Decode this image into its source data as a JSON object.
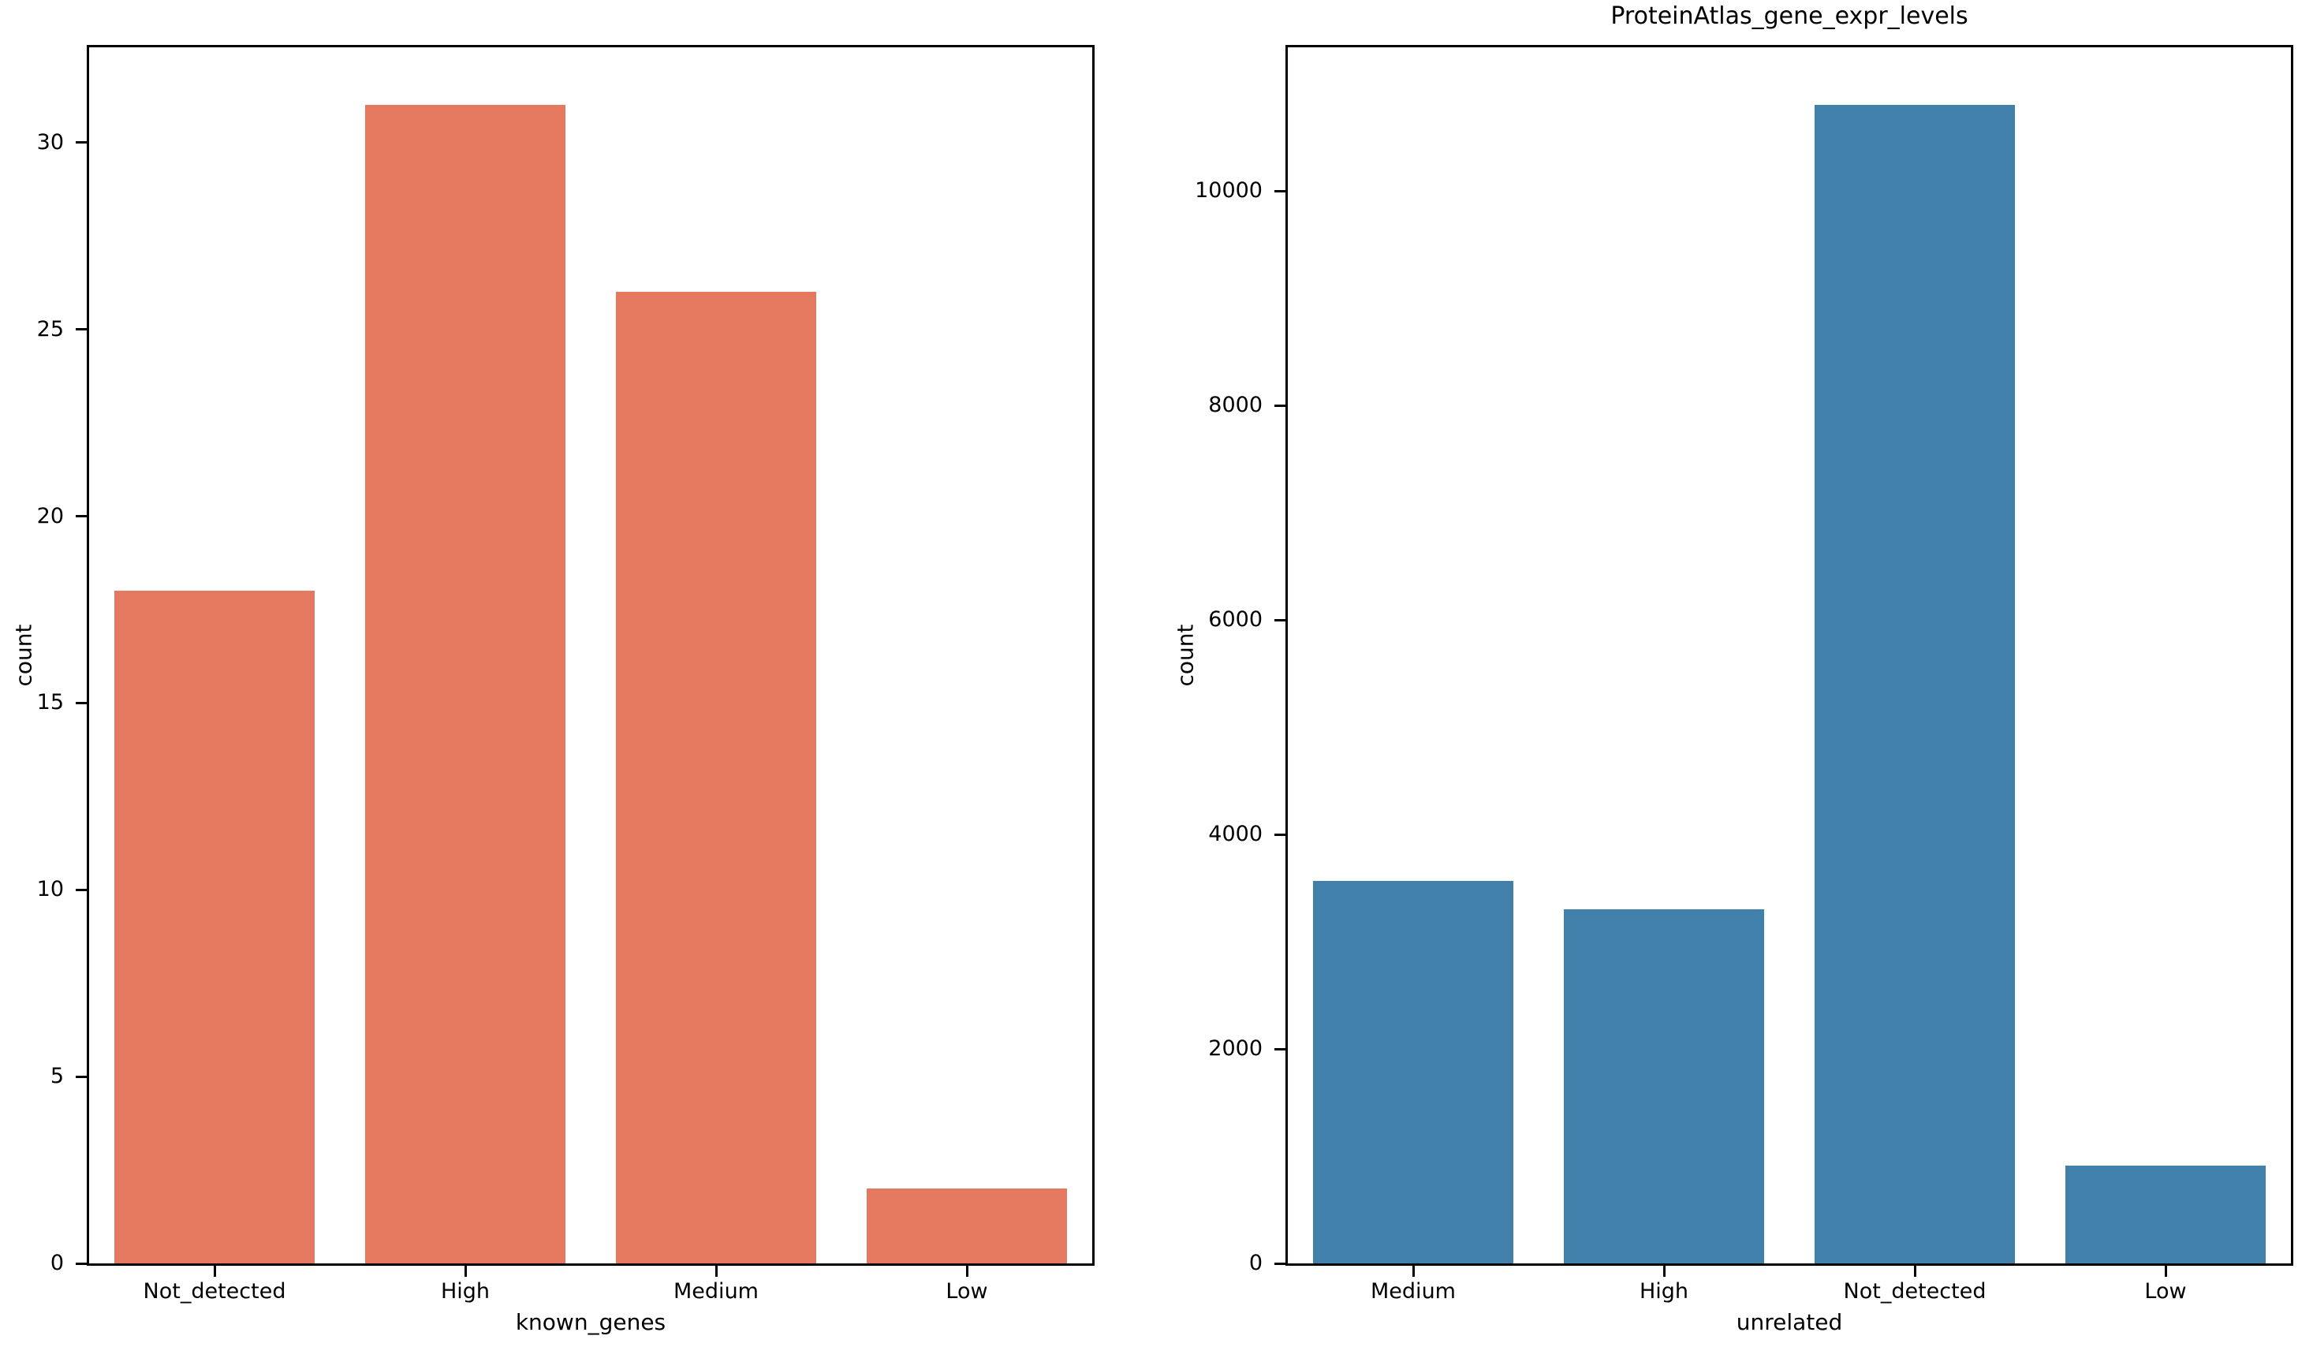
{
  "figure": {
    "background_color": "#ffffff",
    "text_color": "#000000"
  },
  "chart_data": [
    {
      "type": "bar",
      "title": "",
      "categories": [
        "Not_detected",
        "High",
        "Medium",
        "Low"
      ],
      "values": [
        18,
        31,
        26,
        2
      ],
      "xlabel": "known_genes",
      "ylabel": "count",
      "yticks": [
        0,
        5,
        10,
        15,
        20,
        25,
        30
      ],
      "ylim": [
        0,
        32.55
      ],
      "bar_color": "#e4795f",
      "grid": false,
      "legend": "none"
    },
    {
      "type": "bar",
      "title": "ProteinAtlas_gene_expr_levels",
      "categories": [
        "Medium",
        "High",
        "Not_detected",
        "Low"
      ],
      "values": [
        3570,
        3300,
        10800,
        910
      ],
      "xlabel": "unrelated",
      "ylabel": "count",
      "yticks": [
        0,
        2000,
        4000,
        6000,
        8000,
        10000
      ],
      "ylim": [
        0,
        11340
      ],
      "bar_color": "#4280ac",
      "grid": false,
      "legend": "none"
    }
  ]
}
